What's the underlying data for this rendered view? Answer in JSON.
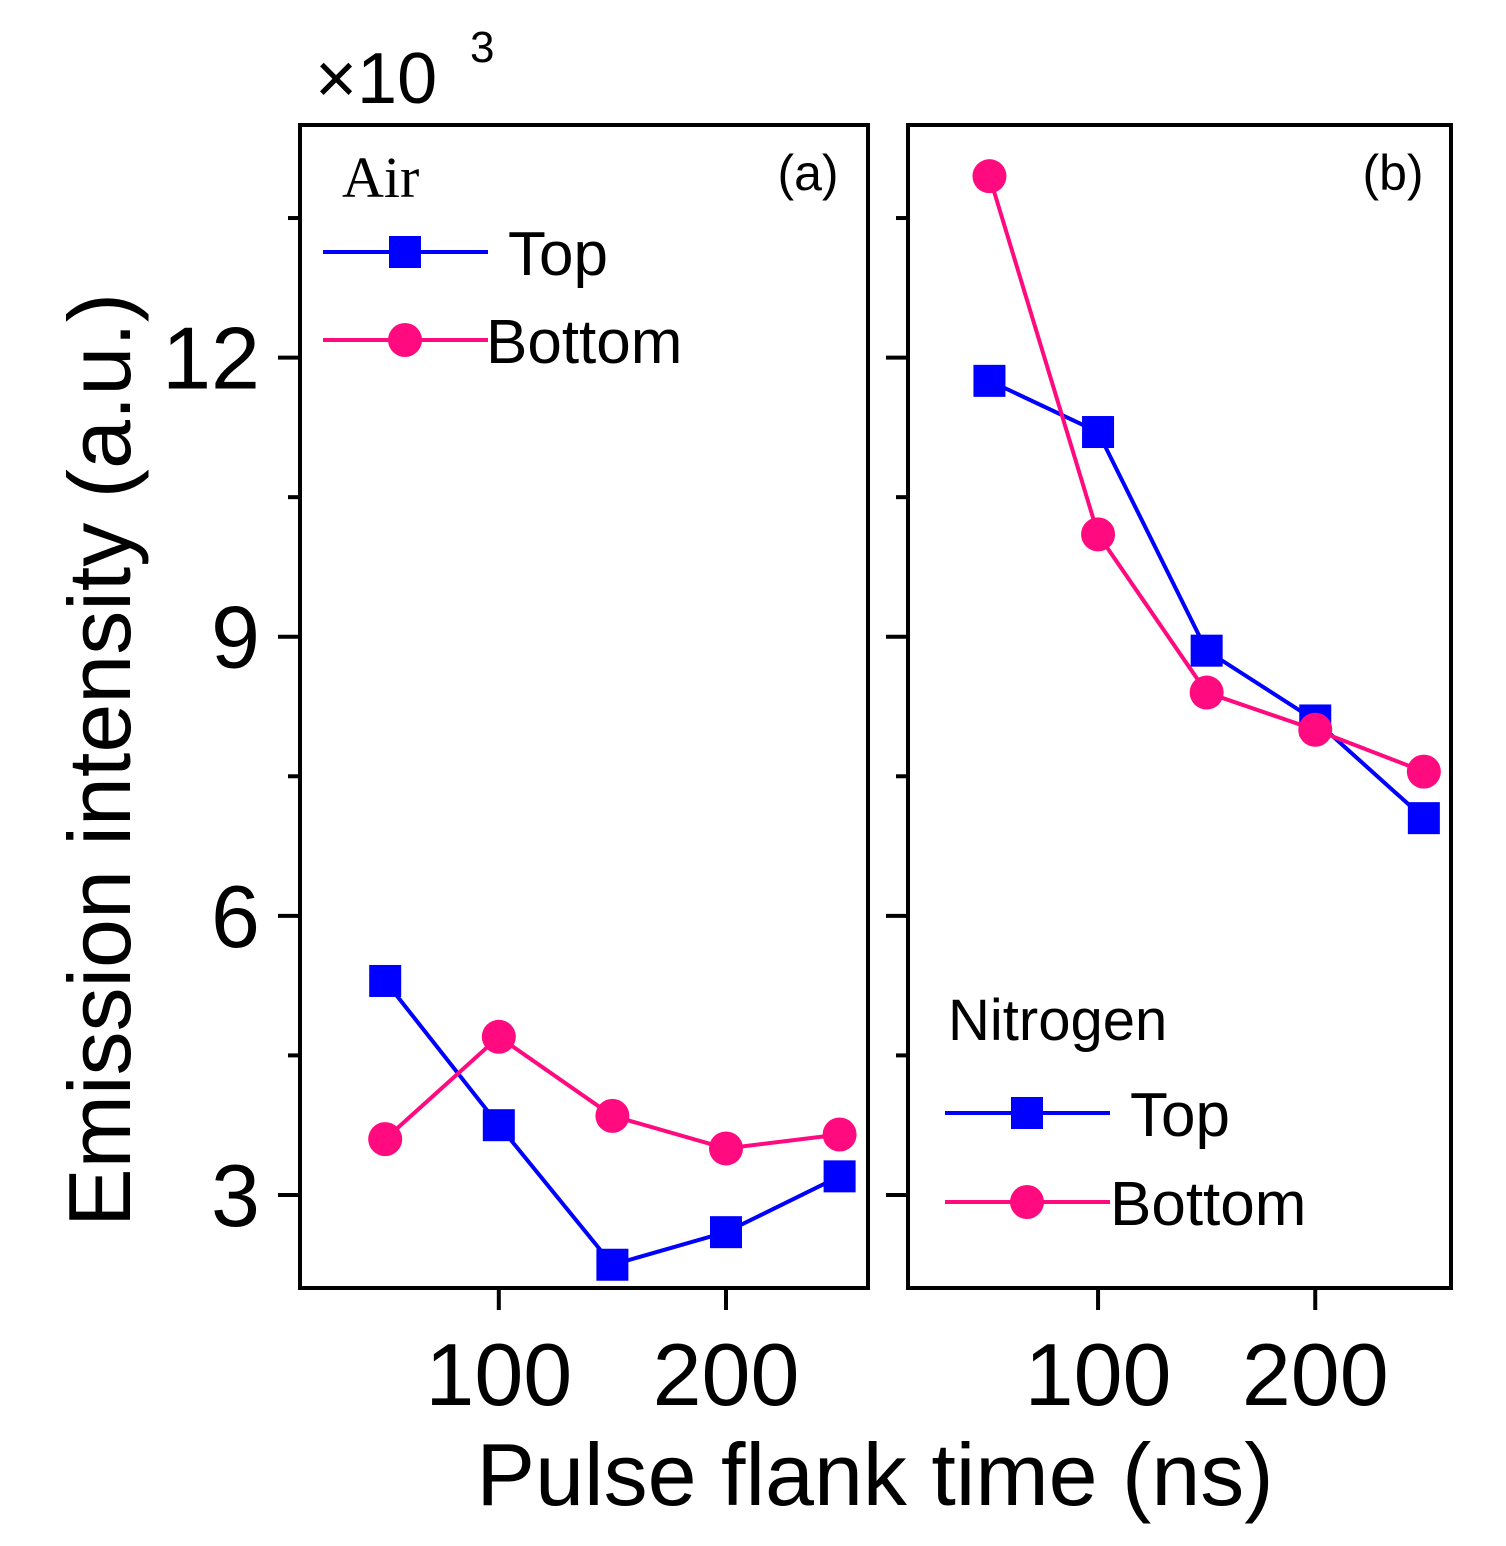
{
  "colors": {
    "top": "#0000ff",
    "bottom": "#ff0a7f"
  },
  "y_axis": {
    "title": "Emission intensity (a.u.)",
    "multiplier": "×10",
    "multiplier_exp": "3"
  },
  "x_axis": {
    "title": "Pulse flank time (ns)"
  },
  "chart_data": [
    {
      "type": "line",
      "panel_label": "(a)",
      "gas": "Air",
      "x": [
        50,
        100,
        150,
        200,
        250
      ],
      "xlim": [
        12.5,
        262.5
      ],
      "xticks": [
        100,
        200
      ],
      "xtick_labels": [
        "100",
        "200"
      ],
      "ylim": [
        2,
        14.5
      ],
      "yticks": [
        3,
        6,
        9,
        12
      ],
      "ytick_labels": [
        "3",
        "6",
        "9",
        "12"
      ],
      "yminor_ticks": [
        4.5,
        7.5,
        10.5,
        13.5
      ],
      "series": [
        {
          "name": "Top",
          "marker": "square",
          "color_key": "top",
          "values": [
            5.3,
            3.75,
            2.25,
            2.6,
            3.2
          ]
        },
        {
          "name": "Bottom",
          "marker": "circle",
          "color_key": "bottom",
          "values": [
            3.6,
            4.7,
            3.85,
            3.5,
            3.65
          ]
        }
      ],
      "xlabel": "Pulse flank time (ns)",
      "ylabel": "Emission intensity (a.u.)"
    },
    {
      "type": "line",
      "panel_label": "(b)",
      "gas": "Nitrogen",
      "x": [
        50,
        100,
        150,
        200,
        250
      ],
      "xlim": [
        12.5,
        262.5
      ],
      "xticks": [
        100,
        200
      ],
      "xtick_labels": [
        "100",
        "200"
      ],
      "ylim": [
        2,
        14.5
      ],
      "yticks": [
        3,
        6,
        9,
        12
      ],
      "yminor_ticks": [
        4.5,
        7.5,
        10.5,
        13.5
      ],
      "series": [
        {
          "name": "Top",
          "marker": "square",
          "color_key": "top",
          "values": [
            11.75,
            11.2,
            8.85,
            8.1,
            7.05
          ]
        },
        {
          "name": "Bottom",
          "marker": "circle",
          "color_key": "bottom",
          "values": [
            13.95,
            10.1,
            8.4,
            8.0,
            7.55
          ]
        }
      ],
      "xlabel": "Pulse flank time (ns)",
      "ylabel": "Emission intensity (a.u.)"
    }
  ]
}
